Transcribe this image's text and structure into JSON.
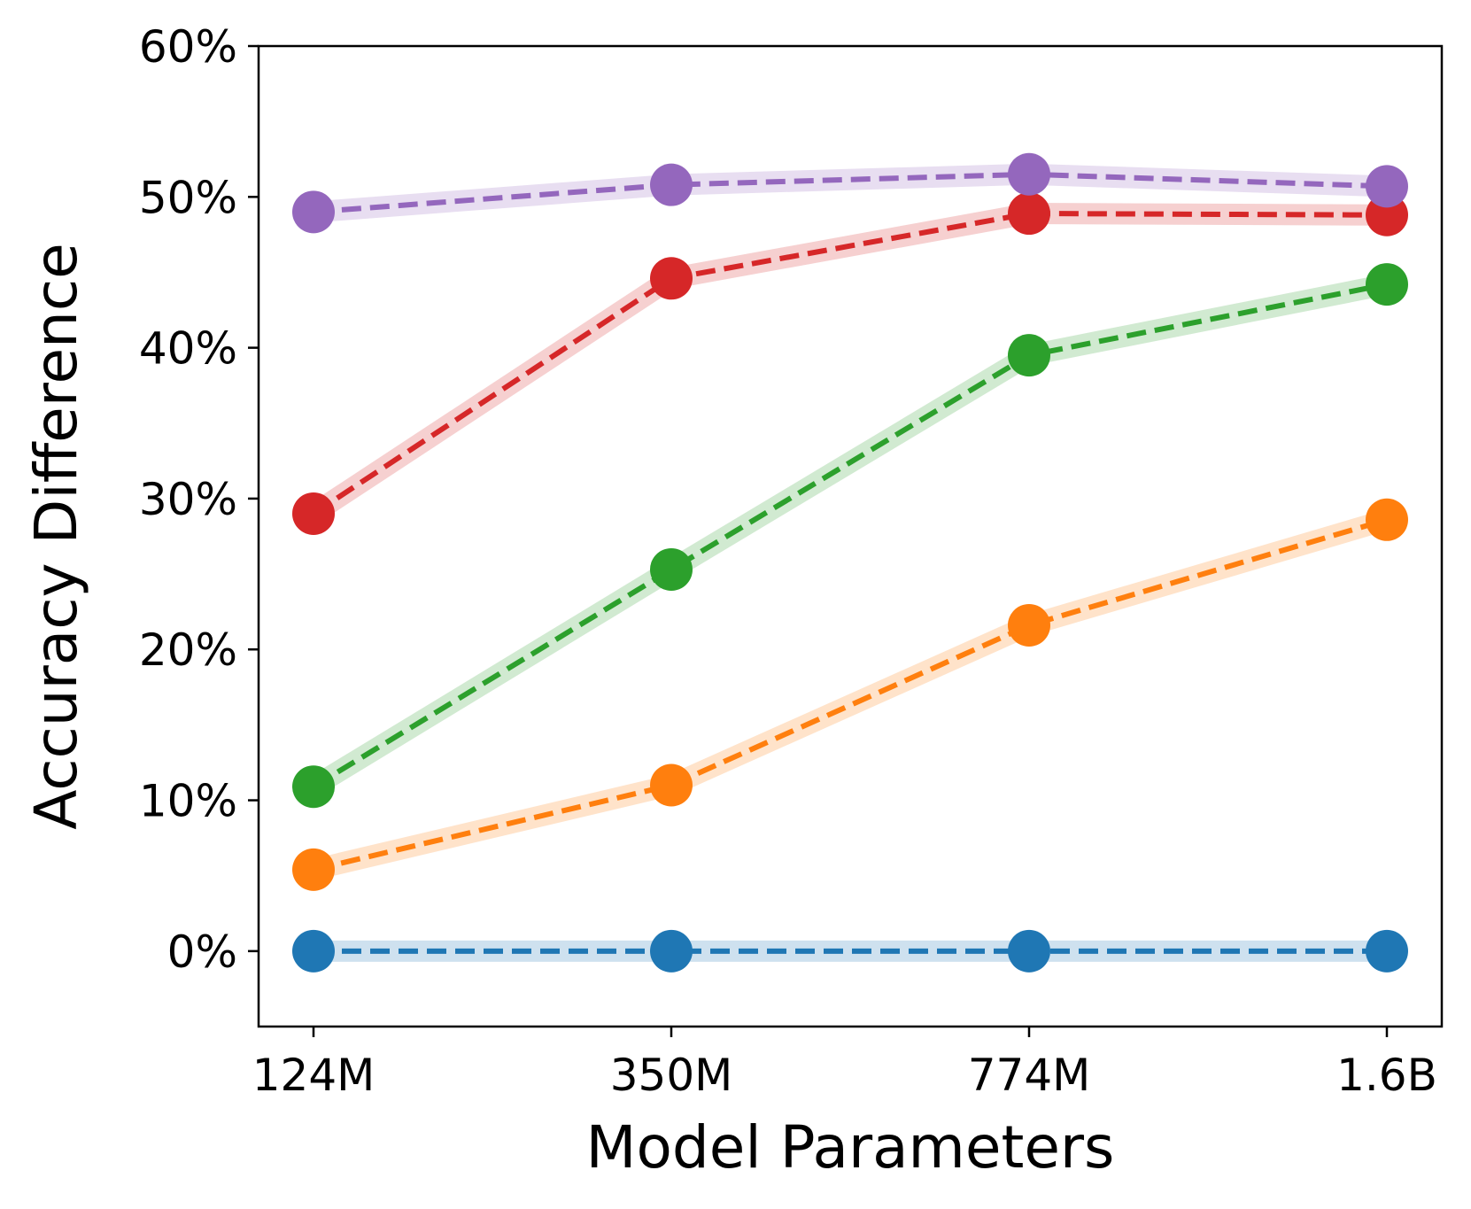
{
  "chart_data": {
    "type": "line",
    "title": "",
    "xlabel": "Model Parameters",
    "ylabel": "Accuracy Difference",
    "categories": [
      "124M",
      "350M",
      "774M",
      "1.6B"
    ],
    "ylim": [
      -5,
      60
    ],
    "yticks": [
      0,
      10,
      20,
      30,
      40,
      50,
      60
    ],
    "ytick_labels": [
      "0%",
      "10%",
      "20%",
      "30%",
      "40%",
      "50%",
      "60%"
    ],
    "grid": false,
    "legend": "none",
    "series": [
      {
        "name": "blue",
        "color": "#1f77b4",
        "values": [
          0.0,
          0.0,
          0.0,
          0.0
        ]
      },
      {
        "name": "orange",
        "color": "#ff7f0e",
        "values": [
          5.4,
          11.0,
          21.6,
          28.6
        ]
      },
      {
        "name": "green",
        "color": "#2ca02c",
        "values": [
          10.9,
          25.3,
          39.5,
          44.2
        ]
      },
      {
        "name": "red",
        "color": "#d62728",
        "values": [
          29.0,
          44.6,
          48.9,
          48.8
        ]
      },
      {
        "name": "purple",
        "color": "#9467bd",
        "values": [
          49.0,
          50.8,
          51.5,
          50.7
        ]
      }
    ]
  }
}
